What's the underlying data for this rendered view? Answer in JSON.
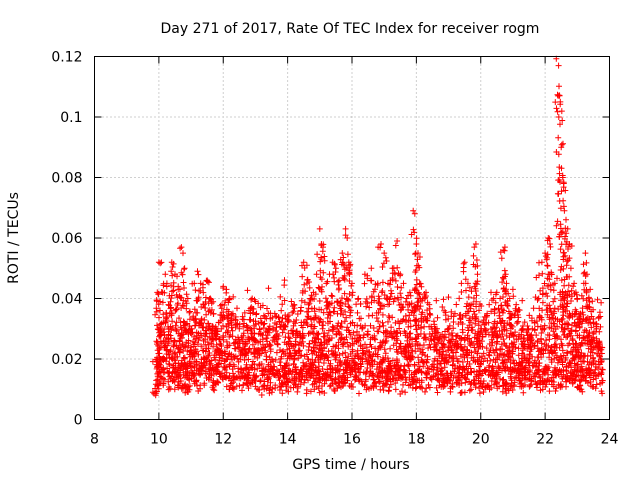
{
  "chart_data": {
    "type": "scatter",
    "title": "Day 271 of 2017, Rate Of TEC Index for receiver rogm",
    "xlabel": "GPS time / hours",
    "ylabel": "ROTI / TECUs",
    "xlim": [
      8,
      24
    ],
    "ylim": [
      0,
      0.12
    ],
    "xticks": [
      8,
      10,
      12,
      14,
      16,
      18,
      20,
      22,
      24
    ],
    "yticks": [
      0,
      0.02,
      0.04,
      0.06,
      0.08,
      0.1,
      0.12
    ],
    "ytick_labels": [
      "0",
      "0.02",
      "0.04",
      "0.06",
      "0.08",
      "0.1",
      "0.12"
    ],
    "grid": true,
    "marker": "+",
    "color": "#ff0000",
    "series": [
      {
        "name": "rogm",
        "points": [
          [
            9.9,
            0.008
          ],
          [
            9.95,
            0.042
          ],
          [
            10.0,
            0.052
          ],
          [
            10.05,
            0.03
          ],
          [
            10.1,
            0.02
          ],
          [
            10.2,
            0.048
          ],
          [
            10.25,
            0.045
          ],
          [
            10.3,
            0.038
          ],
          [
            10.4,
            0.052
          ],
          [
            10.5,
            0.048
          ],
          [
            10.6,
            0.044
          ],
          [
            10.7,
            0.057
          ],
          [
            10.75,
            0.055
          ],
          [
            10.8,
            0.05
          ],
          [
            10.9,
            0.04
          ],
          [
            11.0,
            0.03
          ],
          [
            11.1,
            0.045
          ],
          [
            11.2,
            0.049
          ],
          [
            11.3,
            0.045
          ],
          [
            11.4,
            0.038
          ],
          [
            11.5,
            0.046
          ],
          [
            11.6,
            0.04
          ],
          [
            11.7,
            0.035
          ],
          [
            11.8,
            0.03
          ],
          [
            11.9,
            0.025
          ],
          [
            12.0,
            0.044
          ],
          [
            12.1,
            0.043
          ],
          [
            12.2,
            0.04
          ],
          [
            12.3,
            0.035
          ],
          [
            12.5,
            0.03
          ],
          [
            12.6,
            0.034
          ],
          [
            12.8,
            0.036
          ],
          [
            12.9,
            0.04
          ],
          [
            13.0,
            0.039
          ],
          [
            13.2,
            0.032
          ],
          [
            13.4,
            0.03
          ],
          [
            13.6,
            0.035
          ],
          [
            13.8,
            0.036
          ],
          [
            14.0,
            0.034
          ],
          [
            14.2,
            0.038
          ],
          [
            14.4,
            0.036
          ],
          [
            14.5,
            0.052
          ],
          [
            14.6,
            0.051
          ],
          [
            14.7,
            0.04
          ],
          [
            14.8,
            0.042
          ],
          [
            14.9,
            0.048
          ],
          [
            15.0,
            0.063
          ],
          [
            15.05,
            0.058
          ],
          [
            15.1,
            0.057
          ],
          [
            15.2,
            0.045
          ],
          [
            15.3,
            0.048
          ],
          [
            15.4,
            0.052
          ],
          [
            15.5,
            0.05
          ],
          [
            15.6,
            0.046
          ],
          [
            15.7,
            0.055
          ],
          [
            15.8,
            0.063
          ],
          [
            15.85,
            0.06
          ],
          [
            15.9,
            0.052
          ],
          [
            16.0,
            0.045
          ],
          [
            16.2,
            0.04
          ],
          [
            16.4,
            0.048
          ],
          [
            16.6,
            0.05
          ],
          [
            16.8,
            0.045
          ],
          [
            16.9,
            0.058
          ],
          [
            17.0,
            0.055
          ],
          [
            17.1,
            0.04
          ],
          [
            17.2,
            0.046
          ],
          [
            17.3,
            0.05
          ],
          [
            17.4,
            0.059
          ],
          [
            17.5,
            0.048
          ],
          [
            17.6,
            0.045
          ],
          [
            17.7,
            0.04
          ],
          [
            17.8,
            0.042
          ],
          [
            17.9,
            0.069
          ],
          [
            17.95,
            0.068
          ],
          [
            18.0,
            0.058
          ],
          [
            18.05,
            0.055
          ],
          [
            18.1,
            0.045
          ],
          [
            18.2,
            0.04
          ],
          [
            18.3,
            0.042
          ],
          [
            18.4,
            0.038
          ],
          [
            18.6,
            0.03
          ],
          [
            18.8,
            0.028
          ],
          [
            19.0,
            0.03
          ],
          [
            19.2,
            0.035
          ],
          [
            19.4,
            0.045
          ],
          [
            19.5,
            0.052
          ],
          [
            19.6,
            0.045
          ],
          [
            19.7,
            0.038
          ],
          [
            19.8,
            0.057
          ],
          [
            19.85,
            0.058
          ],
          [
            19.9,
            0.048
          ],
          [
            20.0,
            0.03
          ],
          [
            20.2,
            0.035
          ],
          [
            20.4,
            0.04
          ],
          [
            20.5,
            0.042
          ],
          [
            20.6,
            0.04
          ],
          [
            20.7,
            0.056
          ],
          [
            20.75,
            0.057
          ],
          [
            20.8,
            0.045
          ],
          [
            20.9,
            0.04
          ],
          [
            21.0,
            0.043
          ],
          [
            21.1,
            0.038
          ],
          [
            21.3,
            0.03
          ],
          [
            21.5,
            0.028
          ],
          [
            21.6,
            0.03
          ],
          [
            21.8,
            0.04
          ],
          [
            21.9,
            0.052
          ],
          [
            22.0,
            0.055
          ],
          [
            22.1,
            0.06
          ],
          [
            22.15,
            0.058
          ],
          [
            22.2,
            0.048
          ],
          [
            22.3,
            0.045
          ],
          [
            22.4,
            0.12
          ],
          [
            22.42,
            0.117
          ],
          [
            22.45,
            0.107
          ],
          [
            22.47,
            0.105
          ],
          [
            22.5,
            0.09
          ],
          [
            22.55,
            0.08
          ],
          [
            22.58,
            0.078
          ],
          [
            22.6,
            0.069
          ],
          [
            22.65,
            0.066
          ],
          [
            22.7,
            0.063
          ],
          [
            22.75,
            0.058
          ],
          [
            22.8,
            0.05
          ],
          [
            22.9,
            0.045
          ],
          [
            23.0,
            0.04
          ],
          [
            23.1,
            0.035
          ],
          [
            23.2,
            0.045
          ],
          [
            23.25,
            0.055
          ],
          [
            23.3,
            0.048
          ],
          [
            23.4,
            0.043
          ],
          [
            23.5,
            0.032
          ],
          [
            23.6,
            0.03
          ],
          [
            23.7,
            0.025
          ]
        ]
      }
    ],
    "seed": 271
  }
}
